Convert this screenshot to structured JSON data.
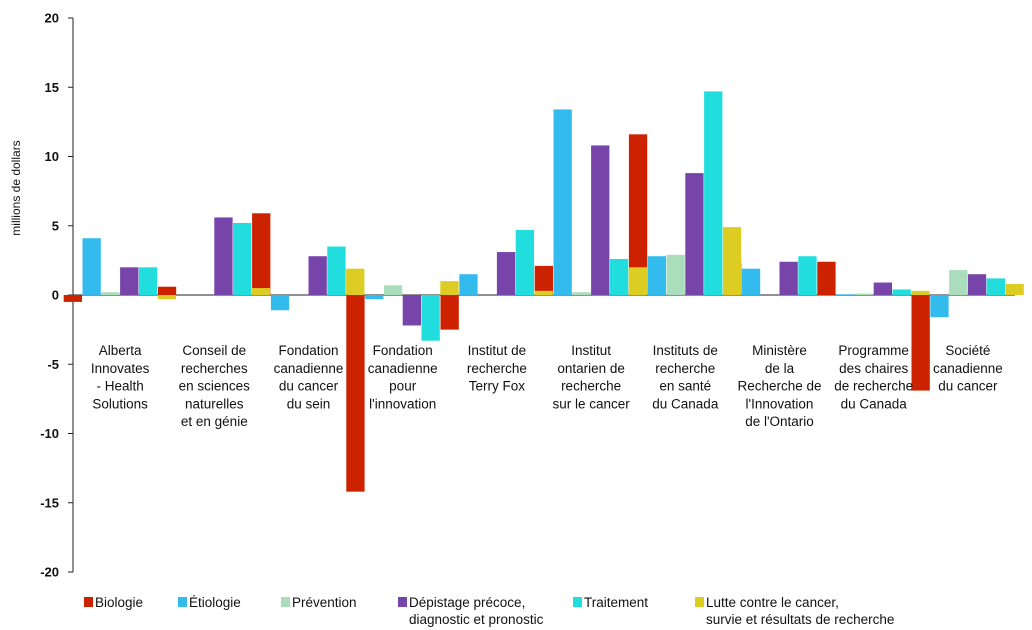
{
  "chart_data": {
    "type": "bar",
    "ylabel": "millions de dollars",
    "ylim": [
      -20,
      20
    ],
    "yticks": [
      -20,
      -15,
      -10,
      -5,
      0,
      5,
      10,
      15,
      20
    ],
    "grid": false,
    "legend_position": "bottom",
    "categories": [
      [
        "Alberta",
        "Innovates",
        "- Health",
        "Solutions"
      ],
      [
        "Conseil de",
        "recherches",
        "en sciences",
        "naturelles",
        "et en génie"
      ],
      [
        "Fondation",
        "canadienne",
        "du cancer",
        "du sein"
      ],
      [
        "Fondation",
        "canadienne",
        "pour",
        "l'innovation"
      ],
      [
        "Institut de",
        "recherche",
        "Terry Fox"
      ],
      [
        "Institut",
        "ontarien de",
        "recherche",
        "sur le cancer"
      ],
      [
        "Instituts de",
        "recherche",
        "en santé",
        "du Canada"
      ],
      [
        "Ministère",
        "de la",
        "Recherche de",
        "l'Innovation",
        "de l'Ontario"
      ],
      [
        "Programme",
        "des chaires",
        "de recherche",
        "du Canada"
      ],
      [
        "Société",
        "canadienne",
        "du cancer"
      ]
    ],
    "series": [
      {
        "name": [
          "Biologie"
        ],
        "color": "#cc2200",
        "values": [
          -0.5,
          0.6,
          5.9,
          -14.2,
          -2.5,
          2.1,
          11.6,
          2.3,
          2.4,
          -6.9
        ]
      },
      {
        "name": [
          "Étiologie"
        ],
        "color": "#33bbee",
        "values": [
          4.1,
          0.0,
          -1.1,
          -0.3,
          1.5,
          13.4,
          2.8,
          1.9,
          0.05,
          -1.6
        ]
      },
      {
        "name": [
          "Prévention"
        ],
        "color": "#aaddbb",
        "values": [
          0.2,
          0.0,
          0.0,
          0.7,
          0.0,
          0.2,
          2.9,
          0.0,
          0.1,
          1.8
        ]
      },
      {
        "name": [
          "Dépistage précoce,",
          "diagnostic et pronostic"
        ],
        "color": "#7744aa",
        "values": [
          2.0,
          5.6,
          2.8,
          -2.2,
          3.1,
          10.8,
          8.8,
          2.4,
          0.9,
          1.5
        ]
      },
      {
        "name": [
          "Traitement"
        ],
        "color": "#22dddd",
        "values": [
          2.0,
          5.2,
          3.5,
          -3.3,
          4.7,
          2.6,
          14.7,
          2.8,
          0.4,
          1.2
        ]
      },
      {
        "name": [
          "Lutte contre le cancer,",
          "survie et résultats de recherche"
        ],
        "color": "#ddcc22",
        "values": [
          -0.3,
          0.5,
          1.9,
          1.0,
          0.3,
          2.0,
          4.9,
          0.0,
          0.3,
          0.8
        ]
      }
    ]
  }
}
